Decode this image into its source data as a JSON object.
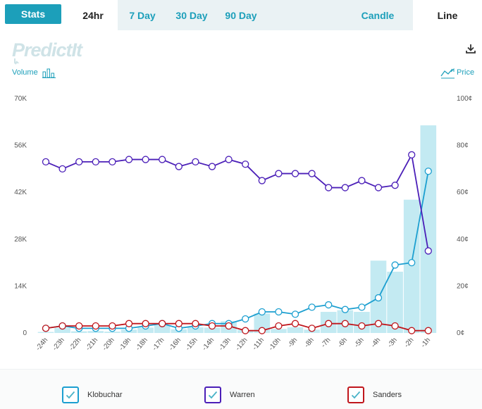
{
  "toolbar": {
    "stats_label": "Stats",
    "tabs": [
      {
        "label": "24hr",
        "active": true
      },
      {
        "label": "7 Day",
        "active": false
      },
      {
        "label": "30 Day",
        "active": false
      },
      {
        "label": "90 Day",
        "active": false
      },
      {
        "label": "Candle",
        "active": false
      },
      {
        "label": "Line",
        "active": true
      }
    ]
  },
  "brand": {
    "logo_text": "PredictIt"
  },
  "labels": {
    "volume": "Volume",
    "price": "Price"
  },
  "colors": {
    "accent": "#1c9fba",
    "volume_bar": "#b8e6f0",
    "klobuchar": "#1c9fd0",
    "warren": "#4b1fb8",
    "sanders": "#c0161c"
  },
  "icons": {
    "download": "download-icon",
    "volume": "bar-chart-icon",
    "price": "line-chart-icon",
    "check": "check-icon"
  },
  "chart_data": {
    "type": "line",
    "title": "",
    "categories": [
      "-24h",
      "-23h",
      "-22h",
      "-21h",
      "-20h",
      "-19h",
      "-18h",
      "-17h",
      "-16h",
      "-15h",
      "-14h",
      "-13h",
      "-12h",
      "-11h",
      "-10h",
      "-9h",
      "-8h",
      "-7h",
      "-6h",
      "-5h",
      "-4h",
      "-3h",
      "-2h",
      "-1h"
    ],
    "left_axis": {
      "label": "Volume",
      "ticks": [
        "0",
        "14K",
        "28K",
        "42K",
        "56K",
        "70K"
      ],
      "range": [
        0,
        70000
      ]
    },
    "right_axis": {
      "label": "Price",
      "ticks": [
        "0¢",
        "20¢",
        "40¢",
        "60¢",
        "80¢",
        "100¢"
      ],
      "range": [
        0,
        100
      ]
    },
    "volume": [
      300,
      1500,
      500,
      600,
      400,
      1000,
      1600,
      2300,
      1100,
      1700,
      1600,
      3500,
      900,
      5800,
      1200,
      1700,
      1000,
      6300,
      6800,
      6300,
      21600,
      18300,
      39800,
      62000
    ],
    "series": [
      {
        "name": "Klobuchar",
        "color": "#1c9fd0",
        "values": [
          2,
          3,
          2,
          2,
          2,
          2,
          3,
          4,
          2,
          3,
          4,
          4,
          6,
          9,
          9,
          8,
          11,
          12,
          10,
          11,
          15,
          29,
          30,
          69
        ]
      },
      {
        "name": "Warren",
        "color": "#4b1fb8",
        "values": [
          73,
          70,
          73,
          73,
          73,
          74,
          74,
          74,
          71,
          73,
          71,
          74,
          72,
          65,
          68,
          68,
          68,
          62,
          62,
          65,
          62,
          63,
          76,
          35
        ]
      },
      {
        "name": "Sanders",
        "color": "#c0161c",
        "values": [
          2,
          3,
          3,
          3,
          3,
          4,
          4,
          4,
          4,
          4,
          3,
          3,
          1,
          1,
          3,
          4,
          2,
          4,
          4,
          3,
          4,
          3,
          1,
          1
        ]
      }
    ],
    "legend": [
      "Klobuchar",
      "Warren",
      "Sanders"
    ],
    "legend_position": "bottom"
  }
}
